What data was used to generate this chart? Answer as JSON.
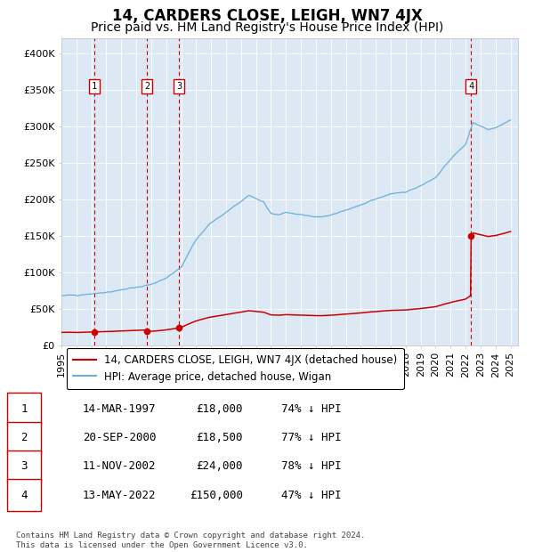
{
  "title": "14, CARDERS CLOSE, LEIGH, WN7 4JX",
  "subtitle": "Price paid vs. HM Land Registry's House Price Index (HPI)",
  "bg_color": "#dce9f5",
  "hpi_color": "#6baed6",
  "price_color": "#cc0000",
  "dashed_color": "#cc0000",
  "ylim": [
    0,
    420000
  ],
  "yticks": [
    0,
    50000,
    100000,
    150000,
    200000,
    250000,
    300000,
    350000,
    400000
  ],
  "ytick_labels": [
    "£0",
    "£50K",
    "£100K",
    "£150K",
    "£200K",
    "£250K",
    "£300K",
    "£350K",
    "£400K"
  ],
  "xlim_start": 1995.0,
  "xlim_end": 2025.5,
  "sale_dates": [
    1997.21,
    2000.72,
    2002.87,
    2022.37
  ],
  "sale_prices": [
    18000,
    18500,
    24000,
    150000
  ],
  "sale_labels": [
    "1",
    "2",
    "3",
    "4"
  ],
  "legend_label_red": "14, CARDERS CLOSE, LEIGH, WN7 4JX (detached house)",
  "legend_label_blue": "HPI: Average price, detached house, Wigan",
  "table_rows": [
    [
      "1",
      "14-MAR-1997",
      "£18,000",
      "74% ↓ HPI"
    ],
    [
      "2",
      "20-SEP-2000",
      "£18,500",
      "77% ↓ HPI"
    ],
    [
      "3",
      "11-NOV-2002",
      "£24,000",
      "78% ↓ HPI"
    ],
    [
      "4",
      "13-MAY-2022",
      "£150,000",
      "47% ↓ HPI"
    ]
  ],
  "footer": "Contains HM Land Registry data © Crown copyright and database right 2024.\nThis data is licensed under the Open Government Licence v3.0.",
  "title_fontsize": 12,
  "subtitle_fontsize": 10,
  "tick_fontsize": 8,
  "legend_fontsize": 8.5,
  "table_fontsize": 9
}
